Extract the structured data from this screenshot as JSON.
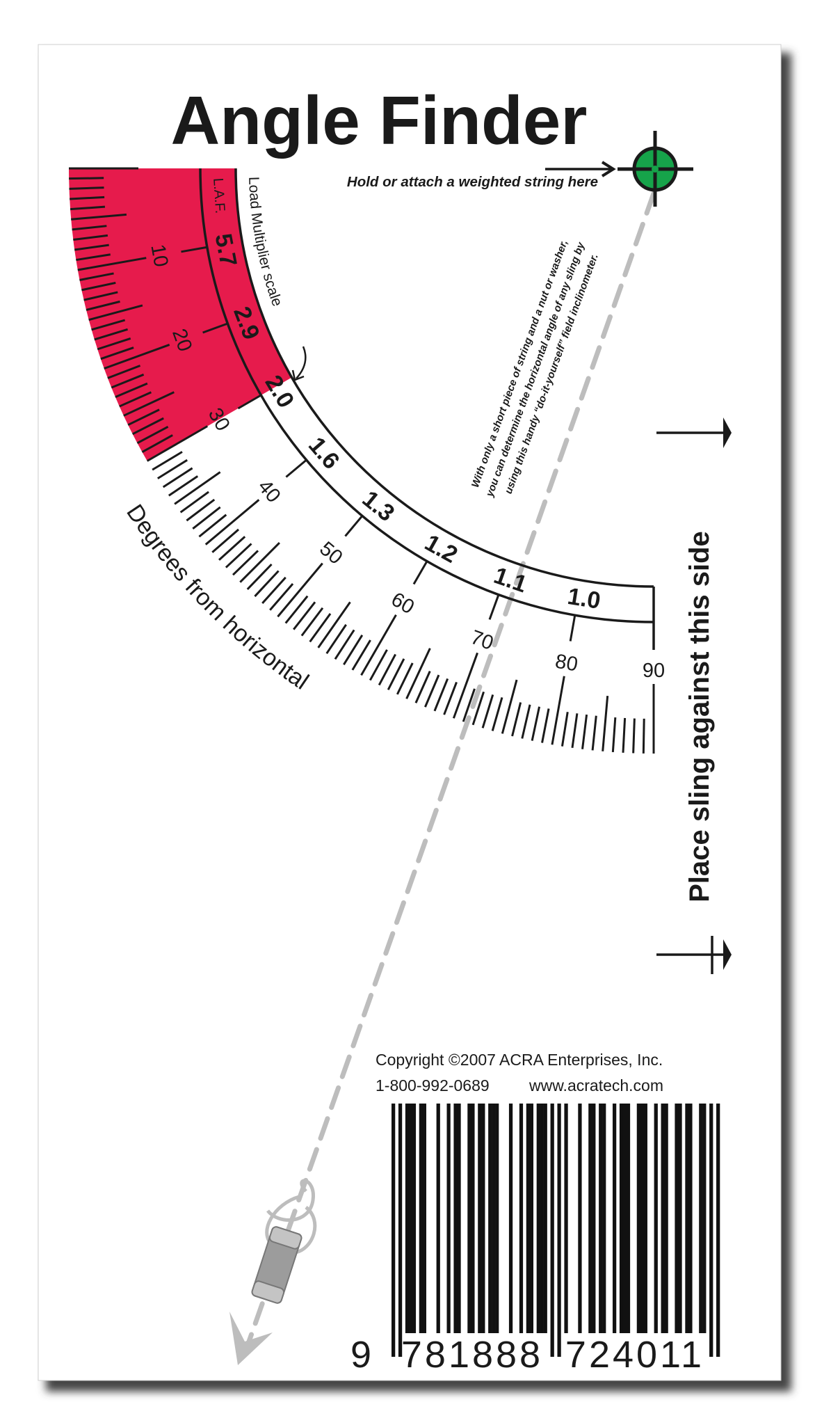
{
  "title": "Angle Finder",
  "hold_label": "Hold or attach a weighted string here",
  "instructions": [
    "With only a short piece of string and a nut or washer,",
    "you can determine the horizontal angle of any sling by",
    "using this handy “do-it-yourself” field inclinometer."
  ],
  "laf_label": "L.A.F.",
  "load_multiplier_label": "Load Multiplier scale",
  "degrees_label": "Degrees from horizontal",
  "side_label": "Place sling against this side",
  "copyright": "Copyright ©2007  ACRA Enterprises, Inc.",
  "phone": "1-800-992-0689",
  "website": "www.acratech.com",
  "barcode": {
    "first": "9",
    "left": "781888",
    "right": "724011"
  },
  "scale": {
    "range_deg": [
      0,
      90
    ],
    "minor_step_deg": 1,
    "degree_labels": [
      "10",
      "20",
      "30",
      "40",
      "50",
      "60",
      "70",
      "80",
      "90"
    ],
    "laf_labels": [
      "5.7",
      "2.9",
      "2.0",
      "1.6",
      "1.3",
      "1.2",
      "1.1",
      "1.0"
    ],
    "red_zone_deg": [
      0,
      30
    ]
  },
  "colors": {
    "red_zone": "#e61b4c",
    "target": "#16a34a",
    "string": "#bdbdbd",
    "ink": "#1a1a1a"
  }
}
